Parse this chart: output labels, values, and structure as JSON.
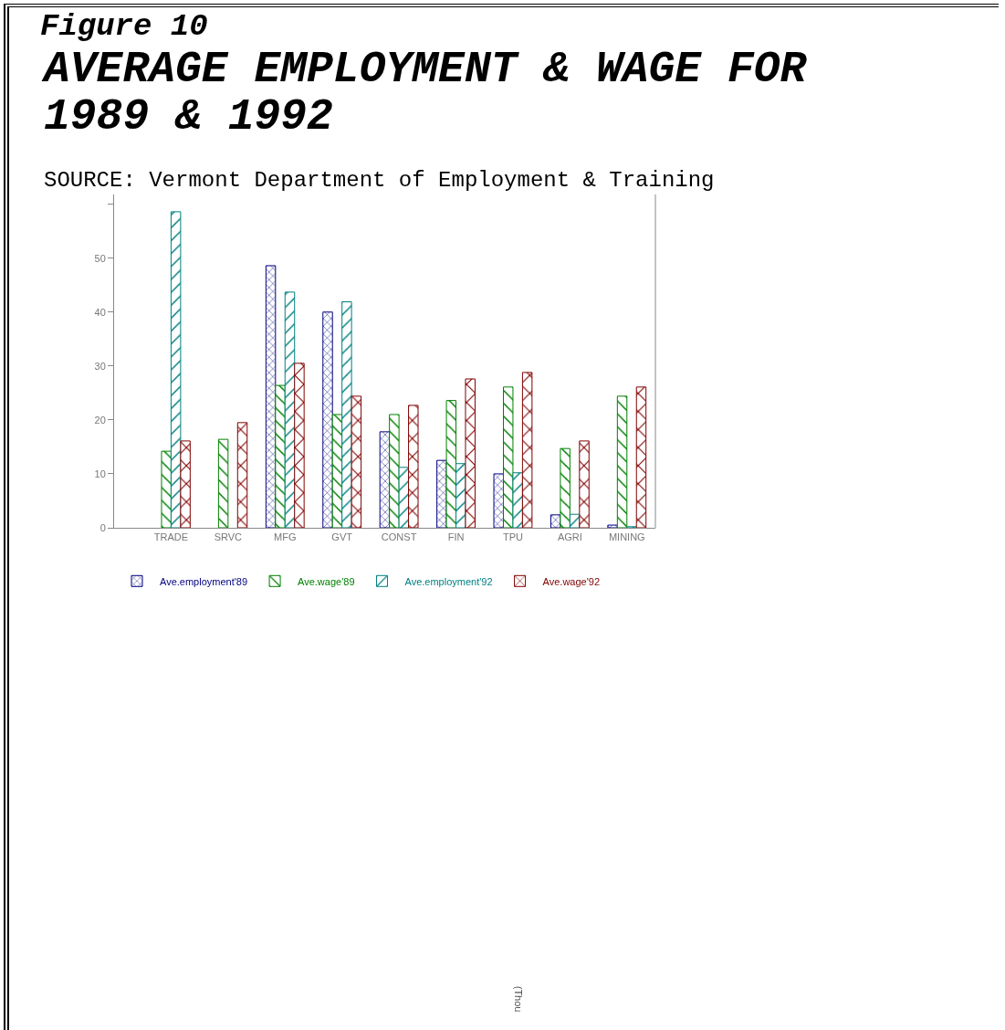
{
  "chart_data": {
    "type": "bar",
    "title": "AVERAGE EMPLOYMENT & WAGE FOR 1989 & 1992",
    "annotations": [
      "Figure 10",
      "SOURCE: Vermont Department of Employment & Training",
      "(Thou"
    ],
    "categories": [
      "TRADE",
      "SRVC",
      "MFG",
      "GVT",
      "CONST",
      "FIN",
      "TPU",
      "AGRI",
      "MINING"
    ],
    "series": [
      {
        "name": "Ave.employment'89",
        "color": "#000080",
        "values": [
          null,
          null,
          48.6,
          40.0,
          17.8,
          12.5,
          10.0,
          2.4,
          0.5
        ]
      },
      {
        "name": "Ave.wage'89",
        "color": "#008000",
        "values": [
          14.2,
          16.4,
          26.4,
          21.0,
          21.0,
          23.6,
          26.1,
          14.7,
          24.4
        ]
      },
      {
        "name": "Ave.employment'92",
        "color": "#008080",
        "values": [
          58.6,
          null,
          43.7,
          41.9,
          11.2,
          11.9,
          10.2,
          2.5,
          0.2
        ]
      },
      {
        "name": "Ave.wage'92",
        "color": "#800000",
        "values": [
          16.1,
          19.5,
          30.5,
          24.4,
          22.7,
          27.6,
          28.8,
          16.1,
          26.1
        ]
      }
    ],
    "ylim": [
      0,
      61.8
    ],
    "yticks": [
      0,
      10,
      20,
      30,
      40,
      50,
      {
        "value": 60,
        "label": null
      }
    ],
    "grid": false,
    "legend": "bottom"
  }
}
